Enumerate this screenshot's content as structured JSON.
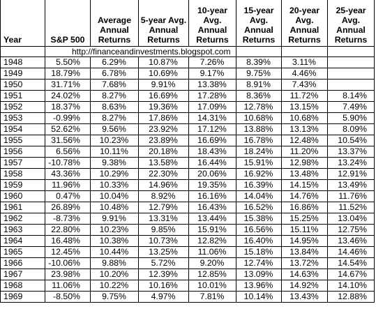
{
  "headers": {
    "year": "Year",
    "sp500": "S&P 500",
    "average": "Average Annual Returns",
    "avg5": "5-year Avg. Annual Returns",
    "avg10": "10-year Avg. Annual Returns",
    "avg15": "15-year Avg. Annual Returns",
    "avg20": "20-year Avg. Annual Returns",
    "avg25": "25-year Avg. Annual Returns"
  },
  "source_url": "http://financeandinvestments.blogspot.com",
  "rows": [
    [
      "1948",
      "5.50%",
      "6.29%",
      "10.87%",
      "7.26%",
      "8.39%",
      "3.11%",
      ""
    ],
    [
      "1949",
      "18.79%",
      "6.78%",
      "10.69%",
      "9.17%",
      "9.75%",
      "4.46%",
      ""
    ],
    [
      "1950",
      "31.71%",
      "7.68%",
      "9.91%",
      "13.38%",
      "8.91%",
      "7.43%",
      ""
    ],
    [
      "1951",
      "24.02%",
      "8.27%",
      "16.69%",
      "17.28%",
      "8.36%",
      "11.72%",
      "8.14%"
    ],
    [
      "1952",
      "18.37%",
      "8.63%",
      "19.36%",
      "17.09%",
      "12.78%",
      "13.15%",
      "7.49%"
    ],
    [
      "1953",
      "-0.99%",
      "8.27%",
      "17.86%",
      "14.31%",
      "10.68%",
      "10.68%",
      "5.90%"
    ],
    [
      "1954",
      "52.62%",
      "9.56%",
      "23.92%",
      "17.12%",
      "13.88%",
      "13.13%",
      "8.09%"
    ],
    [
      "1955",
      "31.56%",
      "10.23%",
      "23.89%",
      "16.69%",
      "16.78%",
      "12.48%",
      "10.54%"
    ],
    [
      "1956",
      "6.56%",
      "10.11%",
      "20.18%",
      "18.43%",
      "18.24%",
      "11.20%",
      "13.37%"
    ],
    [
      "1957",
      "-10.78%",
      "9.38%",
      "13.58%",
      "16.44%",
      "15.91%",
      "12.98%",
      "13.24%"
    ],
    [
      "1958",
      "43.36%",
      "10.29%",
      "22.30%",
      "20.06%",
      "16.92%",
      "13.48%",
      "12.91%"
    ],
    [
      "1959",
      "11.96%",
      "10.33%",
      "14.96%",
      "19.35%",
      "16.39%",
      "14.15%",
      "13.49%"
    ],
    [
      "1960",
      "0.47%",
      "10.04%",
      "8.92%",
      "16.16%",
      "14.04%",
      "14.76%",
      "11.76%"
    ],
    [
      "1961",
      "26.89%",
      "10.48%",
      "12.79%",
      "16.43%",
      "16.52%",
      "16.86%",
      "11.52%"
    ],
    [
      "1962",
      "-8.73%",
      "9.91%",
      "13.31%",
      "13.44%",
      "15.38%",
      "15.25%",
      "13.04%"
    ],
    [
      "1963",
      "22.80%",
      "10.23%",
      "9.85%",
      "15.91%",
      "16.56%",
      "15.11%",
      "12.75%"
    ],
    [
      "1964",
      "16.48%",
      "10.38%",
      "10.73%",
      "12.82%",
      "16.40%",
      "14.95%",
      "13.46%"
    ],
    [
      "1965",
      "12.45%",
      "10.44%",
      "13.25%",
      "11.06%",
      "15.18%",
      "13.84%",
      "14.46%"
    ],
    [
      "1966",
      "-10.06%",
      "9.88%",
      "5.72%",
      "9.20%",
      "12.74%",
      "13.72%",
      "14.54%"
    ],
    [
      "1967",
      "23.98%",
      "10.20%",
      "12.39%",
      "12.85%",
      "13.09%",
      "14.63%",
      "14.67%"
    ],
    [
      "1968",
      "11.06%",
      "10.22%",
      "10.16%",
      "10.01%",
      "13.96%",
      "14.92%",
      "14.10%"
    ],
    [
      "1969",
      "-8.50%",
      "9.75%",
      "4.97%",
      "7.81%",
      "10.14%",
      "13.43%",
      "12.88%"
    ]
  ]
}
